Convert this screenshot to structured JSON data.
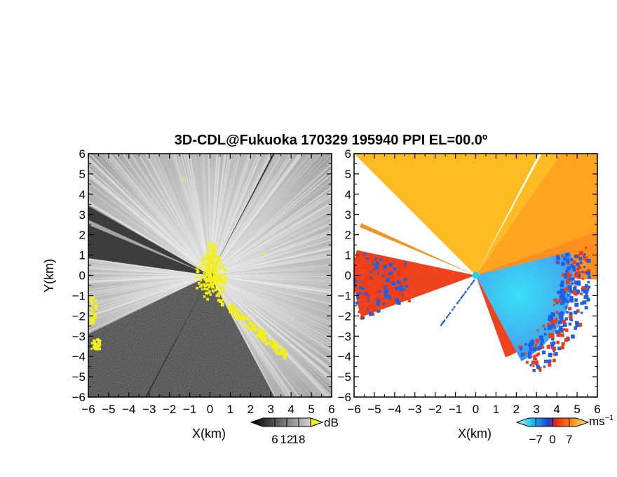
{
  "chart_data": {
    "type": "heatmap",
    "title": "3D-CDL@Fukuoka 170329 195940 PPI EL=00.0º",
    "panels": [
      {
        "name": "reflectivity",
        "xlabel": "X(km)",
        "ylabel": "Y(km)",
        "xlim": [
          -6,
          6
        ],
        "ylim": [
          -6,
          6
        ],
        "xticks": [
          "−6",
          "−5",
          "−4",
          "−3",
          "−2",
          "−1",
          "0",
          "1",
          "2",
          "3",
          "4",
          "5",
          "6"
        ],
        "yticks": [
          "−6",
          "−5",
          "−4",
          "−3",
          "−2",
          "−1",
          "0",
          "1",
          "2",
          "3",
          "4",
          "5",
          "6"
        ],
        "colorbar": {
          "unit": "dB",
          "ticks": [
            "6",
            "12",
            "18"
          ],
          "range": [
            0,
            24
          ]
        }
      },
      {
        "name": "doppler-velocity",
        "xlabel": "X(km)",
        "ylabel": "",
        "xlim": [
          -6,
          6
        ],
        "ylim": [
          -6,
          6
        ],
        "xticks": [
          "−6",
          "−5",
          "−4",
          "−3",
          "−2",
          "−1",
          "0",
          "1",
          "2",
          "3",
          "4",
          "5",
          "6"
        ],
        "yticks": [
          "−6",
          "−5",
          "−4",
          "−3",
          "−2",
          "−1",
          "0",
          "1",
          "2",
          "3",
          "4",
          "5",
          "6"
        ],
        "colorbar": {
          "unit": "ms",
          "unit_exp": "−1",
          "ticks": [
            "−7",
            "0",
            "7"
          ],
          "range": [
            -10,
            10
          ]
        }
      }
    ]
  },
  "colors": {
    "yellow_marks": "#f2ef1a",
    "approaching": "#1f5fe6",
    "receding": "#f03a10",
    "far_receding": "#ffc21a",
    "center_dot": "#20d4f0"
  }
}
